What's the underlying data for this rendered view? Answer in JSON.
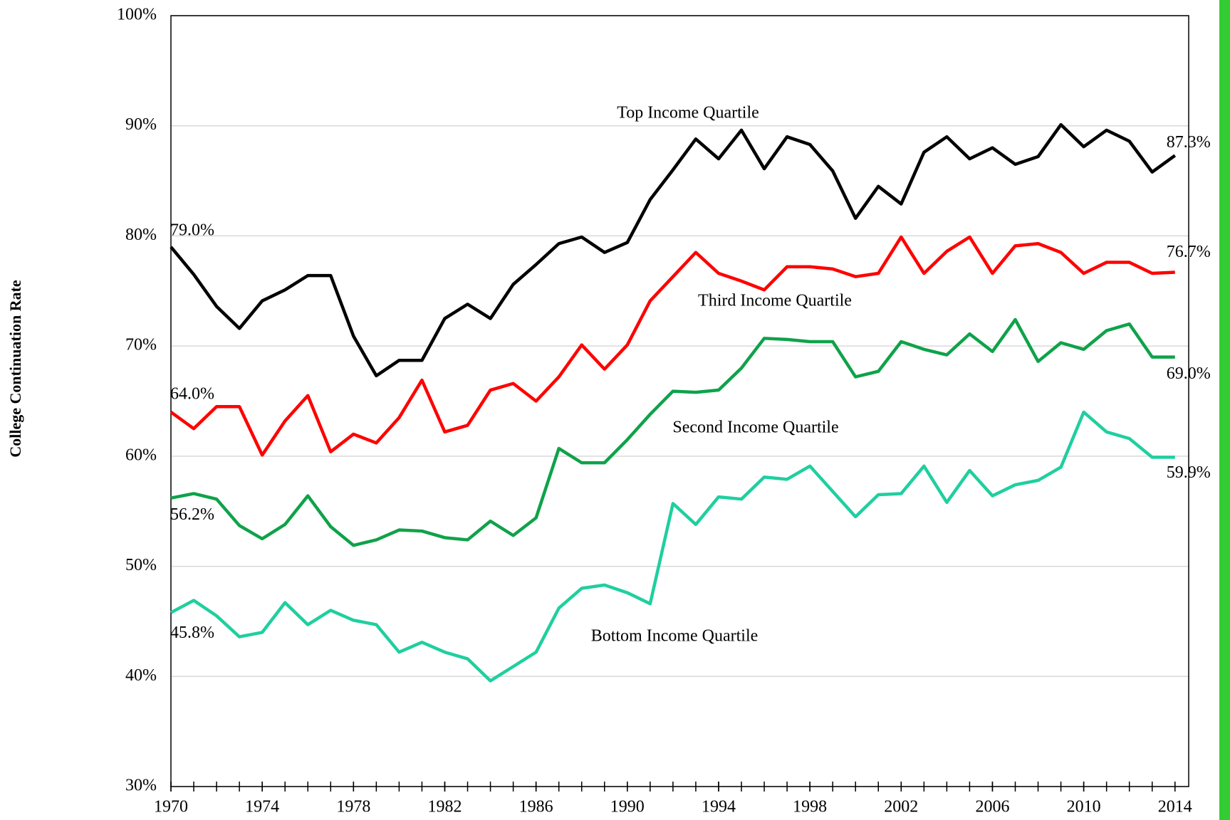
{
  "chart_data": {
    "type": "line",
    "y_label": "College Continuation Rate",
    "x": [
      1970,
      1971,
      1972,
      1973,
      1974,
      1975,
      1976,
      1977,
      1978,
      1979,
      1980,
      1981,
      1982,
      1983,
      1984,
      1985,
      1986,
      1987,
      1988,
      1989,
      1990,
      1991,
      1992,
      1993,
      1994,
      1995,
      1996,
      1997,
      1998,
      1999,
      2000,
      2001,
      2002,
      2003,
      2004,
      2005,
      2006,
      2007,
      2008,
      2009,
      2010,
      2011,
      2012,
      2013,
      2014
    ],
    "xlim": [
      1970,
      2014.6
    ],
    "xticks": [
      1970,
      1974,
      1978,
      1982,
      1986,
      1990,
      1994,
      1998,
      2002,
      2006,
      2010,
      2014
    ],
    "ylim": [
      30,
      100
    ],
    "yticks": [
      {
        "value": 30,
        "label": "30%"
      },
      {
        "value": 40,
        "label": "40%"
      },
      {
        "value": 50,
        "label": "50%"
      },
      {
        "value": 60,
        "label": "60%"
      },
      {
        "value": 70,
        "label": "70%"
      },
      {
        "value": 80,
        "label": "80%"
      },
      {
        "value": 90,
        "label": "90%"
      },
      {
        "value": 100,
        "label": "100%"
      }
    ],
    "grid": true,
    "series": [
      {
        "name": "Top Income Quartile",
        "color": "#000000",
        "values": [
          79.0,
          76.5,
          73.6,
          71.6,
          74.1,
          75.1,
          76.4,
          76.4,
          70.9,
          67.3,
          68.7,
          68.7,
          72.5,
          73.8,
          72.5,
          75.6,
          77.4,
          79.3,
          79.9,
          78.5,
          79.4,
          83.3,
          86.0,
          88.8,
          87.0,
          89.6,
          86.1,
          89.0,
          88.3,
          85.9,
          81.6,
          84.5,
          82.9,
          87.6,
          89.0,
          87.0,
          88.0,
          86.5,
          87.2,
          90.1,
          88.1,
          89.6,
          88.6,
          85.8,
          87.3
        ],
        "value_labels": [
          "79.0%",
          null,
          null,
          null,
          null,
          null,
          null,
          null,
          null,
          null,
          null,
          null,
          null,
          null,
          null,
          null,
          null,
          null,
          null,
          null,
          null,
          null,
          null,
          null,
          null,
          null,
          null,
          null,
          null,
          null,
          null,
          null,
          null,
          null,
          null,
          null,
          null,
          null,
          null,
          null,
          null,
          null,
          null,
          null,
          "87.3%"
        ]
      },
      {
        "name": "Third Income Quartile",
        "color": "#ff0000",
        "values": [
          64.0,
          62.5,
          64.5,
          64.5,
          60.1,
          63.2,
          65.5,
          60.4,
          62.0,
          61.2,
          63.5,
          66.9,
          62.2,
          62.8,
          66.0,
          66.6,
          65.0,
          67.2,
          70.1,
          67.9,
          70.1,
          74.1,
          76.3,
          78.5,
          76.6,
          75.9,
          75.1,
          77.2,
          77.2,
          77.0,
          76.3,
          76.6,
          79.9,
          76.6,
          78.6,
          79.9,
          76.6,
          79.1,
          79.3,
          78.5,
          76.6,
          77.6,
          77.6,
          76.6,
          76.7
        ],
        "value_labels": [
          "64.0%",
          null,
          null,
          null,
          null,
          null,
          null,
          null,
          null,
          null,
          null,
          null,
          null,
          null,
          null,
          null,
          null,
          null,
          null,
          null,
          null,
          null,
          null,
          null,
          null,
          null,
          null,
          null,
          null,
          null,
          null,
          null,
          null,
          null,
          null,
          null,
          null,
          null,
          null,
          null,
          null,
          null,
          null,
          null,
          "76.7%"
        ]
      },
      {
        "name": "Second Income Quartile",
        "color": "#0fa24a",
        "values": [
          56.2,
          56.6,
          56.1,
          53.7,
          52.5,
          53.8,
          56.4,
          53.6,
          51.9,
          52.4,
          53.3,
          53.2,
          52.6,
          52.4,
          54.1,
          52.8,
          54.4,
          60.7,
          59.4,
          59.4,
          61.5,
          63.8,
          65.9,
          65.8,
          66.0,
          68.0,
          70.7,
          70.6,
          70.4,
          70.4,
          67.2,
          67.7,
          70.4,
          69.7,
          69.2,
          71.1,
          69.5,
          72.4,
          68.6,
          70.3,
          69.7,
          71.4,
          72.0,
          69.0,
          69.0
        ],
        "value_labels": [
          "56.2%",
          null,
          null,
          null,
          null,
          null,
          null,
          null,
          null,
          null,
          null,
          null,
          null,
          null,
          null,
          null,
          null,
          null,
          null,
          null,
          null,
          null,
          null,
          null,
          null,
          null,
          null,
          null,
          null,
          null,
          null,
          null,
          null,
          null,
          null,
          null,
          null,
          null,
          null,
          null,
          null,
          null,
          null,
          null,
          "69.0%"
        ]
      },
      {
        "name": "Bottom Income Quartile",
        "color": "#1fcf9f",
        "values": [
          45.8,
          46.9,
          45.5,
          43.6,
          44.0,
          46.7,
          44.7,
          46.0,
          45.1,
          44.7,
          42.2,
          43.1,
          42.2,
          41.6,
          39.6,
          40.9,
          42.2,
          46.2,
          48.0,
          48.3,
          47.6,
          46.6,
          55.7,
          53.8,
          56.3,
          56.1,
          58.1,
          57.9,
          59.1,
          56.8,
          54.5,
          56.5,
          56.6,
          59.1,
          55.8,
          58.7,
          56.4,
          57.4,
          57.8,
          59.0,
          64.0,
          62.2,
          61.6,
          59.9,
          59.9
        ],
        "value_labels": [
          "45.8%",
          null,
          null,
          null,
          null,
          null,
          null,
          null,
          null,
          null,
          null,
          null,
          null,
          null,
          null,
          null,
          null,
          null,
          null,
          null,
          null,
          null,
          null,
          null,
          null,
          null,
          null,
          null,
          null,
          null,
          null,
          null,
          null,
          null,
          null,
          null,
          null,
          null,
          null,
          null,
          null,
          null,
          null,
          null,
          "59.9%"
        ]
      }
    ]
  }
}
